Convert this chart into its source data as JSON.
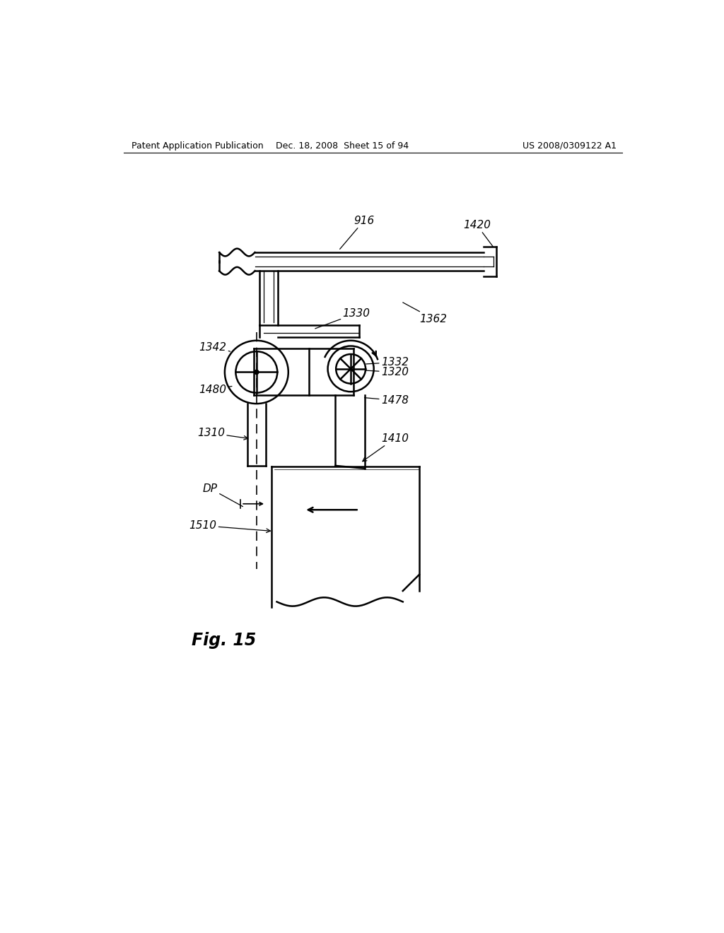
{
  "bg_color": "#ffffff",
  "header_left": "Patent Application Publication",
  "header_center": "Dec. 18, 2008  Sheet 15 of 94",
  "header_right": "US 2008/0309122 A1",
  "fig_label": "Fig. 15"
}
